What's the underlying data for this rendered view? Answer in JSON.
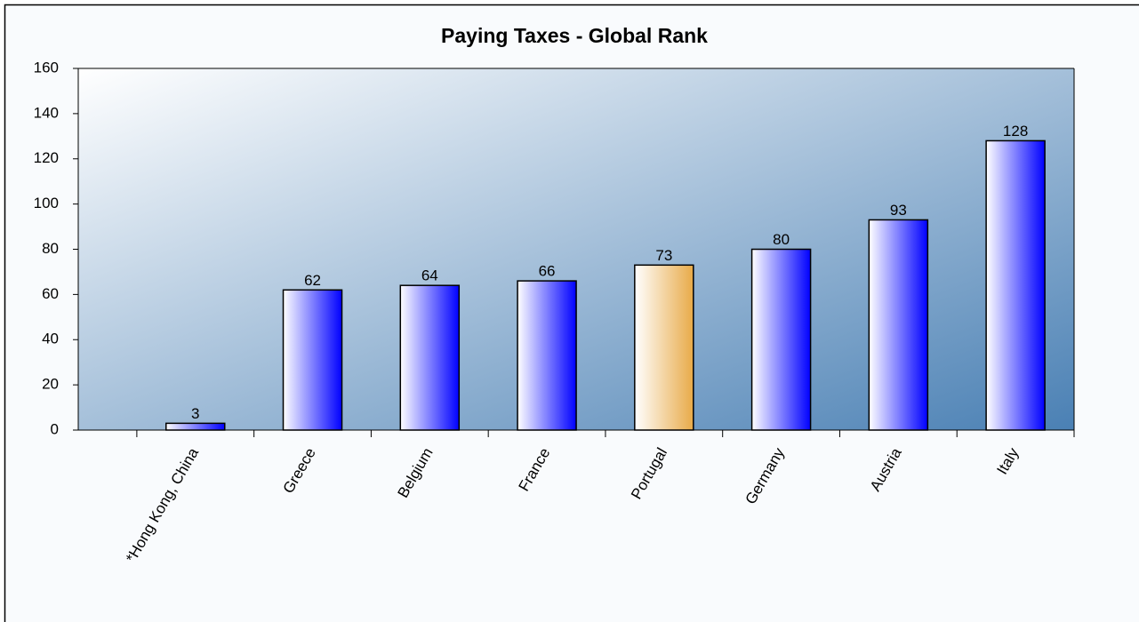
{
  "chart_data": {
    "type": "bar",
    "title": "Paying Taxes - Global Rank",
    "categories": [
      "*Hong Kong, China",
      "Greece",
      "Belgium",
      "France",
      "Portugal",
      "Germany",
      "Austria",
      "Italy"
    ],
    "values": [
      3,
      62,
      64,
      66,
      73,
      80,
      93,
      128
    ],
    "colors": [
      "#0000ff",
      "#0000ff",
      "#0000ff",
      "#0000ff",
      "#e8aa48",
      "#0000ff",
      "#0000ff",
      "#0000ff"
    ],
    "ylim": [
      0,
      160
    ],
    "yticks": [
      0,
      20,
      40,
      60,
      80,
      100,
      120,
      140,
      160
    ]
  }
}
